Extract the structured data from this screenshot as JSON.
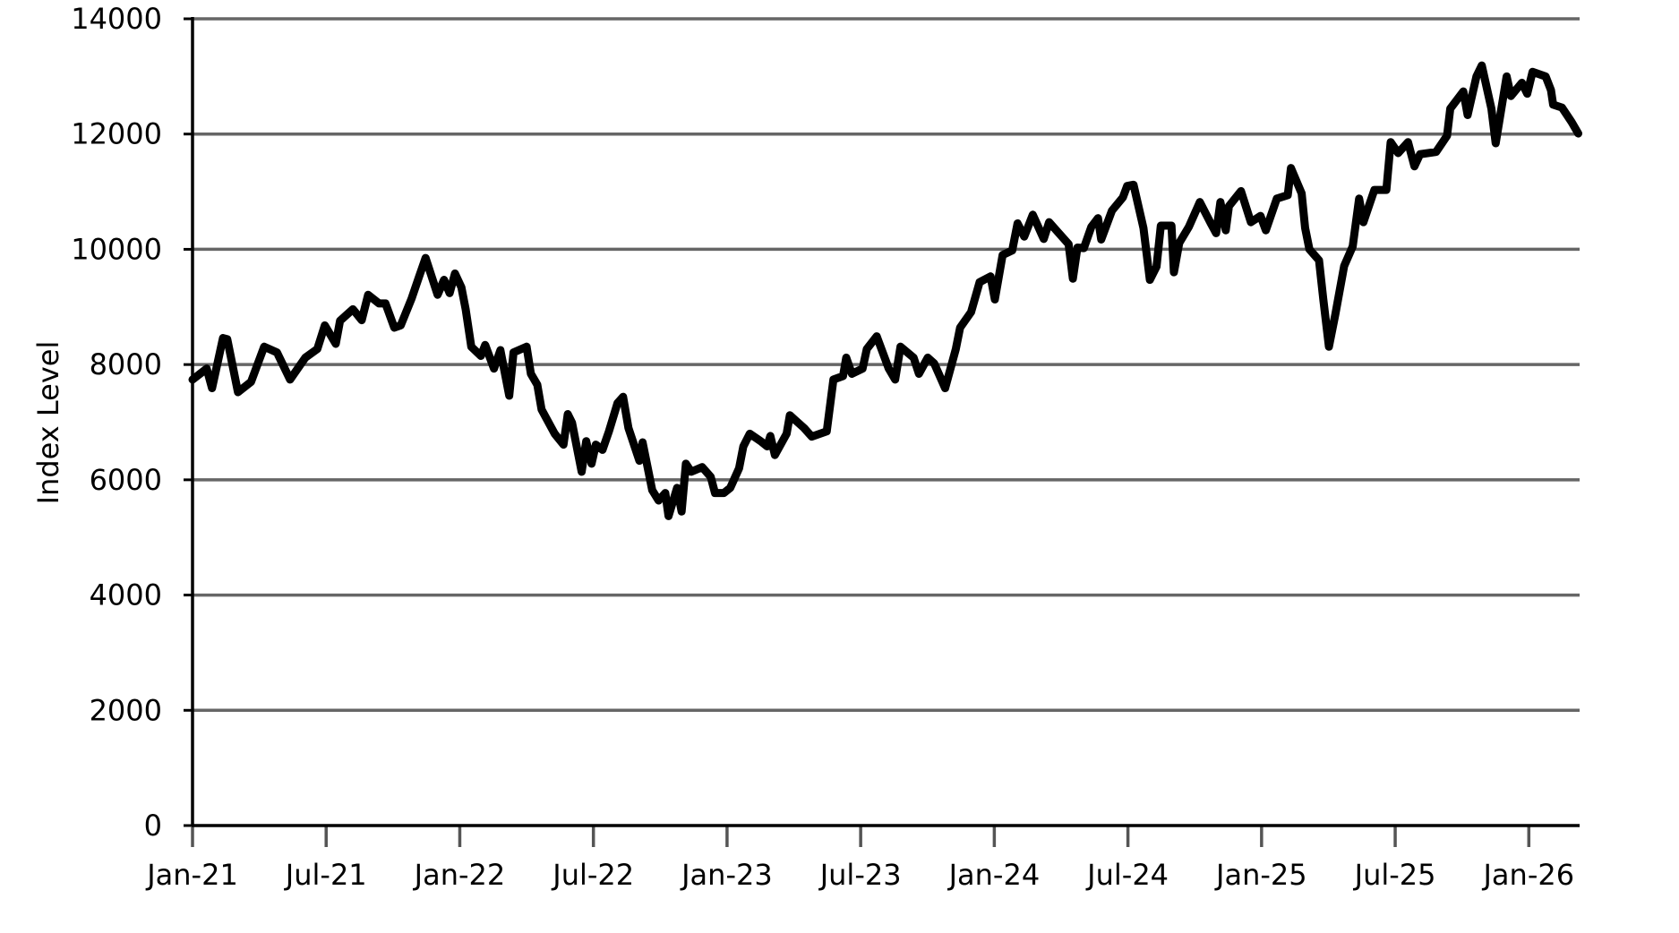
{
  "chart_data": {
    "type": "line",
    "y_label": "Index Level",
    "grid": true,
    "xlim": [
      2021,
      2026.19
    ],
    "xticks": [
      {
        "value": 2021,
        "label": "Jan-21"
      },
      {
        "value": 2021.5,
        "label": "Jul-21"
      },
      {
        "value": 2022,
        "label": "Jan-22"
      },
      {
        "value": 2022.5,
        "label": "Jul-22"
      },
      {
        "value": 2023,
        "label": "Jan-23"
      },
      {
        "value": 2023.5,
        "label": "Jul-23"
      },
      {
        "value": 2024,
        "label": "Jan-24"
      },
      {
        "value": 2024.5,
        "label": "Jul-24"
      },
      {
        "value": 2025,
        "label": "Jan-25"
      },
      {
        "value": 2025.5,
        "label": "Jul-25"
      },
      {
        "value": 2026,
        "label": "Jan-26"
      }
    ],
    "ylim": [
      0,
      14000
    ],
    "yticks": [
      0,
      2000,
      4000,
      6000,
      8000,
      10000,
      12000,
      14000
    ],
    "x": [
      2021.0,
      2021.053,
      2021.073,
      2021.114,
      2021.13,
      2021.17,
      2021.219,
      2021.268,
      2021.316,
      2021.365,
      2021.422,
      2021.467,
      2021.495,
      2021.536,
      2021.552,
      2021.6,
      2021.633,
      2021.657,
      2021.698,
      2021.722,
      2021.755,
      2021.779,
      2021.82,
      2021.848,
      2021.872,
      2021.917,
      2021.941,
      2021.962,
      2021.982,
      2022.006,
      2022.022,
      2022.043,
      2022.079,
      2022.095,
      2022.128,
      2022.152,
      2022.185,
      2022.201,
      2022.25,
      2022.266,
      2022.29,
      2022.306,
      2022.355,
      2022.388,
      2022.404,
      2022.42,
      2022.456,
      2022.473,
      2022.493,
      2022.509,
      2022.534,
      2022.558,
      2022.59,
      2022.611,
      2022.631,
      2022.672,
      2022.684,
      2022.72,
      2022.744,
      2022.769,
      2022.781,
      2022.813,
      2022.83,
      2022.846,
      2022.866,
      2022.907,
      2022.939,
      2022.955,
      2022.988,
      2023.012,
      2023.045,
      2023.061,
      2023.085,
      2023.126,
      2023.15,
      2023.162,
      2023.179,
      2023.223,
      2023.235,
      2023.288,
      2023.317,
      2023.373,
      2023.398,
      2023.434,
      2023.446,
      2023.467,
      2023.507,
      2023.523,
      2023.56,
      2023.605,
      2023.629,
      2023.649,
      2023.698,
      2023.718,
      2023.751,
      2023.775,
      2023.816,
      2023.856,
      2023.872,
      2023.913,
      2023.945,
      2023.986,
      2024.002,
      2024.031,
      2024.067,
      2024.087,
      2024.112,
      2024.144,
      2024.185,
      2024.205,
      2024.278,
      2024.294,
      2024.311,
      2024.335,
      2024.363,
      2024.388,
      2024.4,
      2024.44,
      2024.481,
      2024.497,
      2024.521,
      2024.558,
      2024.582,
      2024.607,
      2024.623,
      2024.663,
      2024.672,
      2024.692,
      2024.728,
      2024.769,
      2024.81,
      2024.83,
      2024.846,
      2024.866,
      2024.878,
      2024.923,
      2024.96,
      2024.996,
      2025.016,
      2025.057,
      2025.098,
      2025.11,
      2025.15,
      2025.163,
      2025.179,
      2025.215,
      2025.231,
      2025.252,
      2025.276,
      2025.309,
      2025.341,
      2025.365,
      2025.381,
      2025.422,
      2025.467,
      2025.483,
      2025.511,
      2025.548,
      2025.572,
      2025.593,
      2025.653,
      2025.694,
      2025.706,
      2025.755,
      2025.771,
      2025.804,
      2025.824,
      2025.86,
      2025.876,
      2025.917,
      2025.933,
      2025.974,
      2025.994,
      2026.014,
      2026.063,
      2026.083,
      2026.091,
      2026.124,
      2026.16,
      2026.185
    ],
    "series": [
      {
        "color": "#000000",
        "values": [
          7740,
          7930,
          7590,
          8460,
          8440,
          7520,
          7700,
          8310,
          8210,
          7740,
          8120,
          8270,
          8680,
          8360,
          8760,
          8960,
          8770,
          9210,
          9060,
          9060,
          8640,
          8680,
          9150,
          9530,
          9850,
          9210,
          9470,
          9240,
          9580,
          9340,
          8960,
          8310,
          8150,
          8340,
          7930,
          8250,
          7460,
          8210,
          8310,
          7840,
          7650,
          7220,
          6800,
          6610,
          7140,
          6990,
          6140,
          6670,
          6280,
          6610,
          6520,
          6840,
          7330,
          7440,
          6900,
          6330,
          6650,
          5820,
          5640,
          5770,
          5370,
          5860,
          5450,
          6280,
          6140,
          6220,
          6050,
          5770,
          5770,
          5860,
          6200,
          6580,
          6800,
          6670,
          6580,
          6760,
          6430,
          6800,
          7120,
          6900,
          6750,
          6840,
          7740,
          7800,
          8120,
          7840,
          7930,
          8270,
          8490,
          7930,
          7740,
          8310,
          8120,
          7840,
          8120,
          8020,
          7590,
          8270,
          8640,
          8910,
          9430,
          9530,
          9130,
          9900,
          9980,
          10450,
          10220,
          10600,
          10180,
          10470,
          10090,
          9490,
          10030,
          10020,
          10390,
          10540,
          10170,
          10670,
          10900,
          11100,
          11120,
          10370,
          9470,
          9700,
          10410,
          10410,
          9600,
          10110,
          10390,
          10820,
          10450,
          10280,
          10820,
          10330,
          10750,
          11010,
          10470,
          10580,
          10330,
          10880,
          10940,
          11410,
          10970,
          10370,
          10000,
          9810,
          9130,
          8310,
          8870,
          9710,
          10050,
          10880,
          10470,
          11030,
          11030,
          11860,
          11670,
          11860,
          11440,
          11650,
          11690,
          11970,
          12440,
          12740,
          12330,
          13000,
          13190,
          12440,
          11840,
          13000,
          12660,
          12890,
          12700,
          13080,
          13000,
          12760,
          12510,
          12460,
          12210,
          12010
        ]
      }
    ]
  }
}
